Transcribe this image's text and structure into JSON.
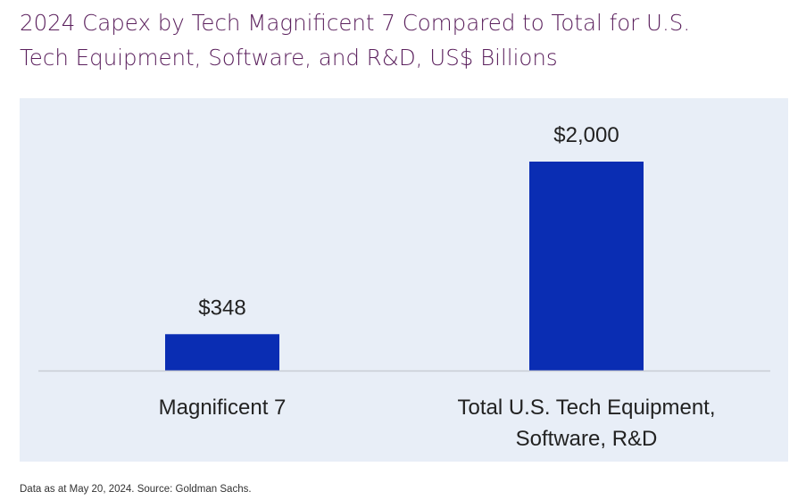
{
  "title_lines": [
    "2024 Capex by Tech Magnificent 7 Compared to Total for U.S.",
    "Tech Equipment, Software, and R&D, US$  Billions"
  ],
  "source_note": "Data as at May 20, 2024. Source: Goldman Sachs.",
  "colors": {
    "title": "#5a1f5c",
    "panel_background": "#e8eef7",
    "bar": "#0a2db3",
    "axis": "#c8ccd4",
    "label_text": "#222222"
  },
  "chart_data": {
    "type": "bar",
    "title": "2024 Capex by Tech Magnificent 7 Compared to Total for U.S. Tech Equipment, Software, and R&D, US$  Billions",
    "categories": [
      [
        "Magnificent 7"
      ],
      [
        "Total U.S. Tech Equipment,",
        "Software, R&D"
      ]
    ],
    "values": [
      348,
      2000
    ],
    "value_labels": [
      "$348",
      "$2,000"
    ],
    "units": "US$ Billions",
    "ylim": [
      0,
      2000
    ],
    "grid": false,
    "legend": "none"
  }
}
